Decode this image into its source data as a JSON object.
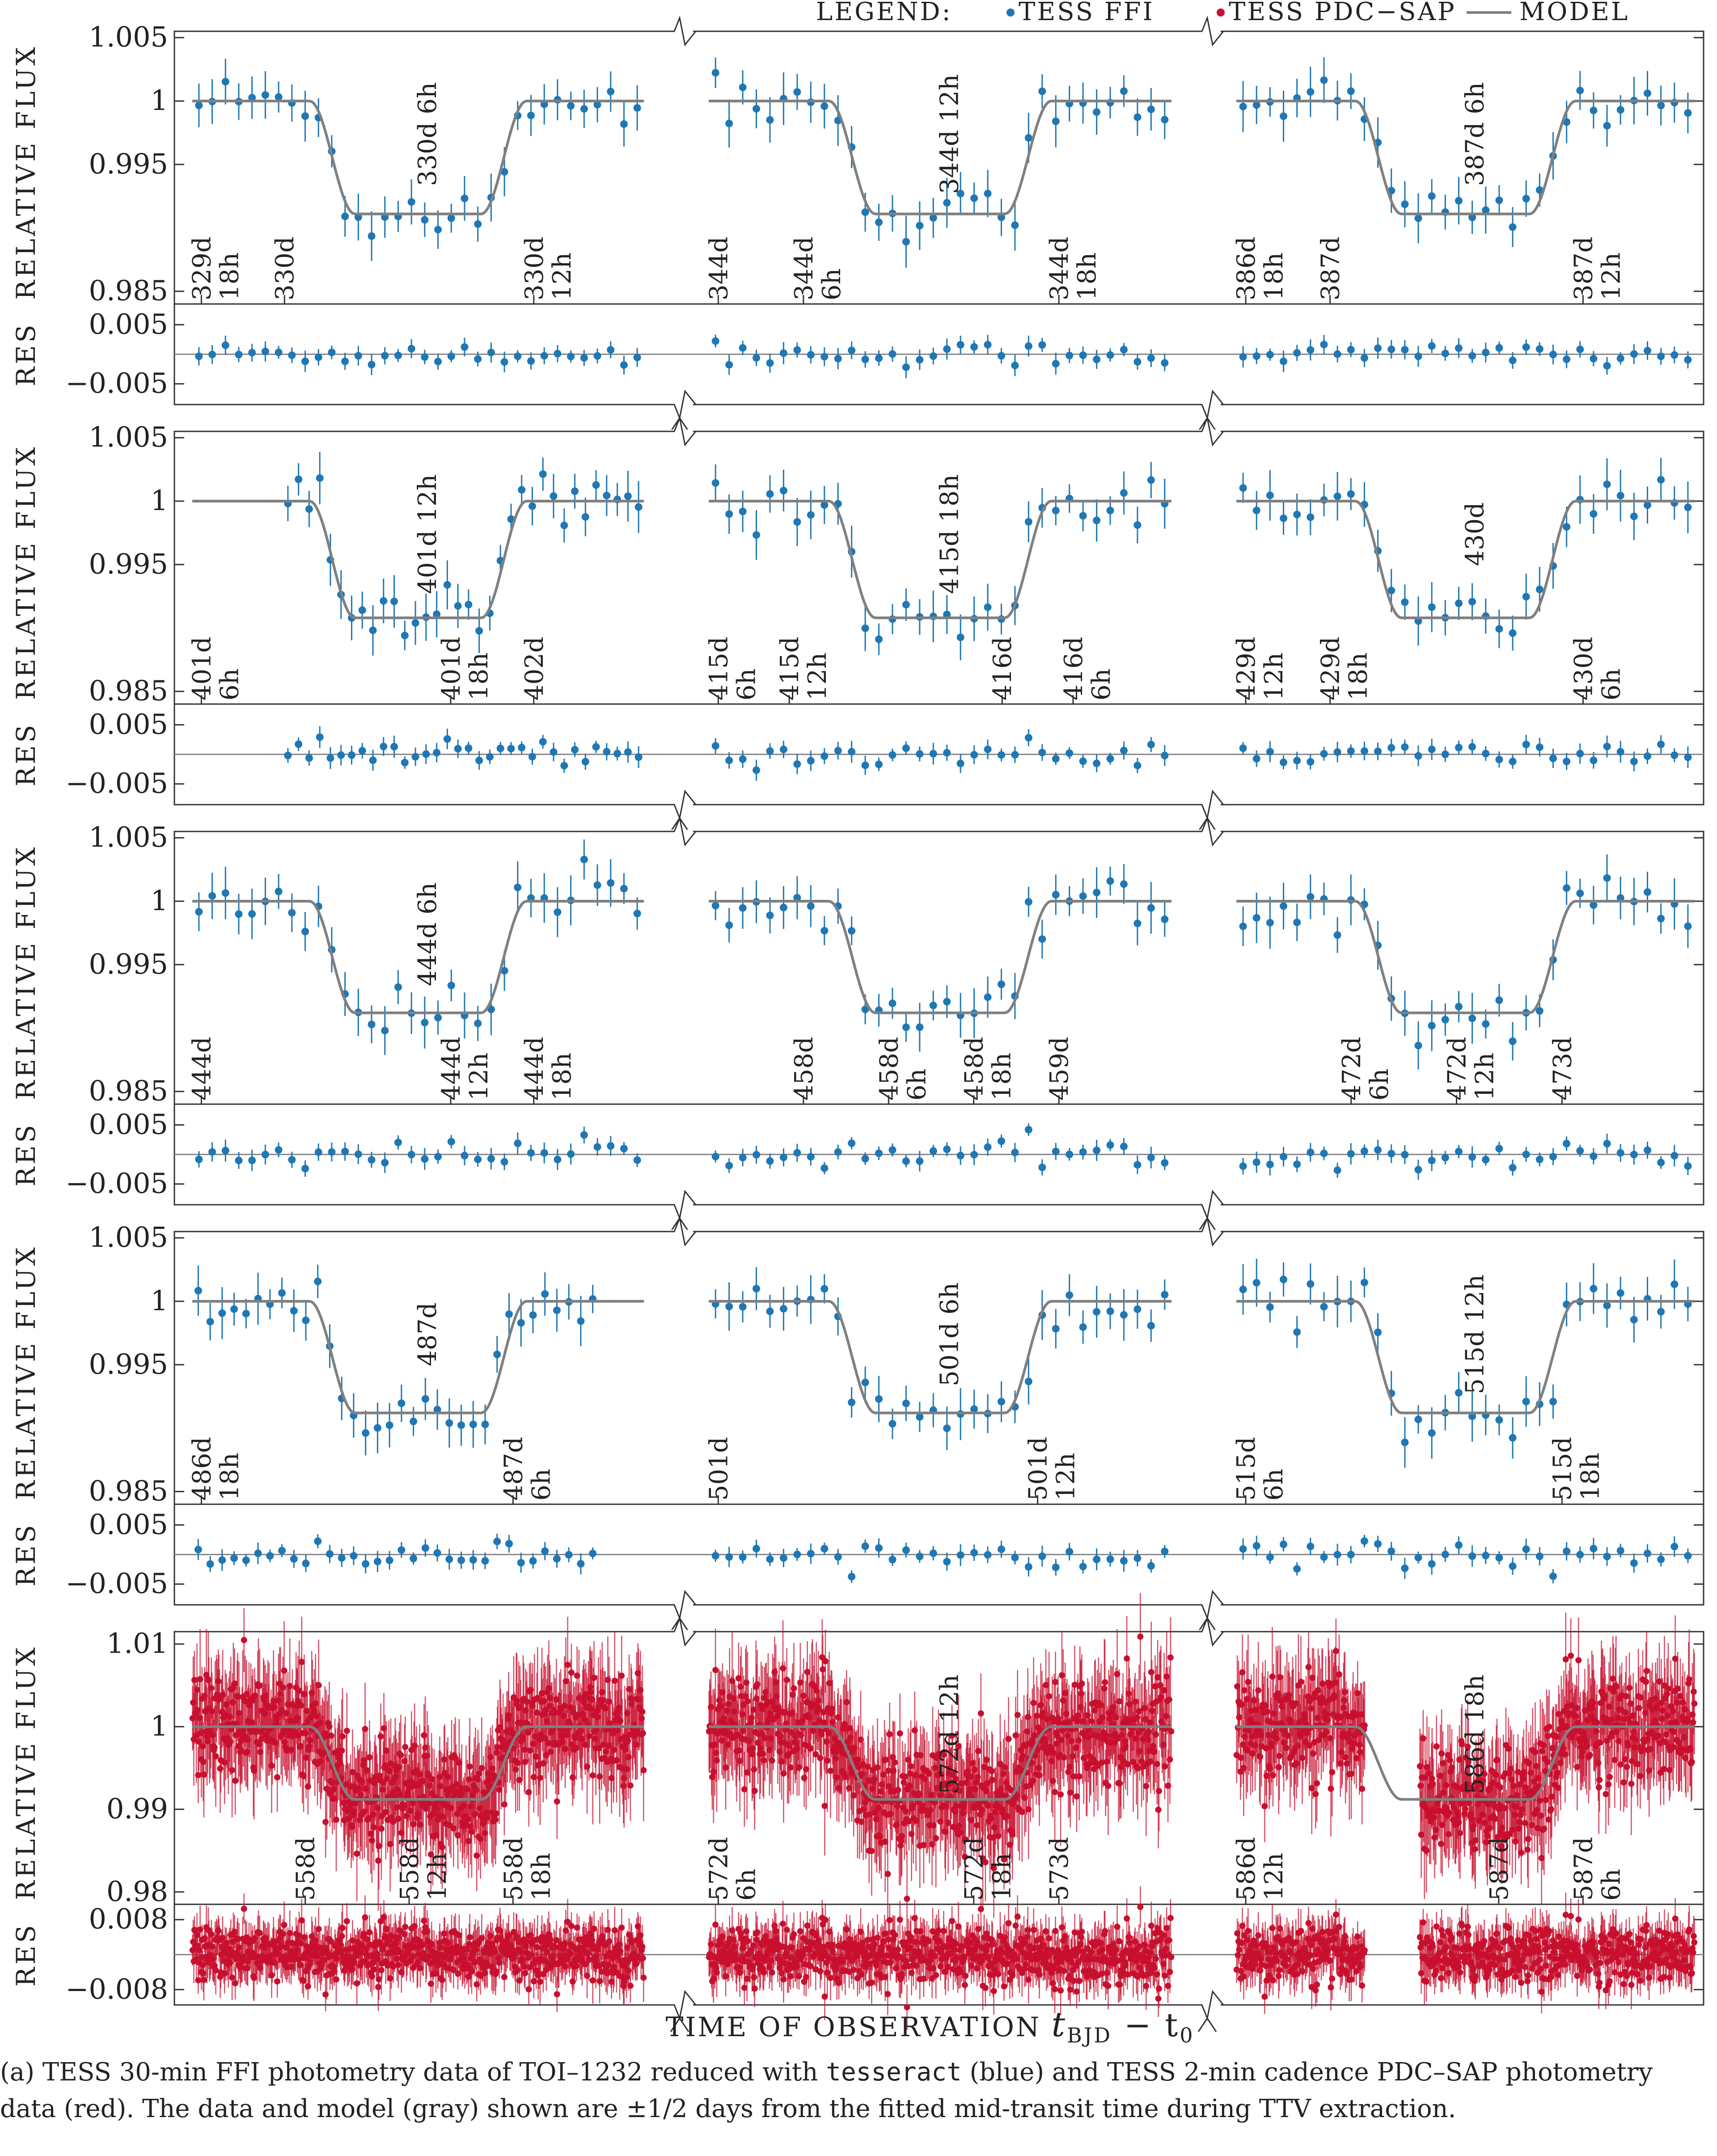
{
  "legend": {
    "title": "LEGEND:",
    "items": [
      {
        "label": "TESS FFI",
        "color": "#1f77b4",
        "kind": "point"
      },
      {
        "label": "TESS PDC−SAP",
        "color": "#c8102e",
        "kind": "point"
      },
      {
        "label": "MODEL",
        "color": "#808080",
        "kind": "line"
      }
    ]
  },
  "axis_labels": {
    "y_flux": "RELATIVE FLUX",
    "y_res": "RES",
    "x_prefix": "TIME OF OBSERVATION",
    "x_math": "t",
    "x_sub": "BJD",
    "x_suffix": "− t",
    "x_sub2": "0"
  },
  "caption": {
    "part1": "(a) TESS 30-min FFI photometry data of TOI–1232 reduced with ",
    "code": "tesseract",
    "part2": " (blue) and TESS 2-min cadence PDC–SAP photometry data (red). The data and model (gray) shown are ±1/2 days from the fitted mid-transit time during TTV extraction."
  },
  "chart_data": [
    {
      "type": "scatter",
      "source": "TESS FFI",
      "flux_ticks": [
        "1.005",
        "1",
        "0.995",
        "0.985"
      ],
      "res_ticks": [
        "0.005",
        "−0.005"
      ],
      "flux_ylim": [
        0.984,
        1.0055
      ],
      "res_ylim": [
        -0.0085,
        0.0085
      ],
      "depth": 0.0089,
      "transits": [
        {
          "center": "330d 6h",
          "labels": [
            "329d\n18h",
            "330d",
            "330d 6h",
            "330d\n12h"
          ],
          "visible_frac": [
            0.0,
            1.0
          ]
        },
        {
          "center": "344d 12h",
          "labels": [
            "344d",
            "344d\n6h",
            "344d 12h",
            "344d\n18h"
          ],
          "visible_frac": [
            0.0,
            1.0
          ]
        },
        {
          "center": "387d 6h",
          "labels": [
            "386d\n18h",
            "387d",
            "387d 6h",
            "387d\n12h"
          ],
          "visible_frac": [
            0.0,
            1.0
          ]
        }
      ]
    },
    {
      "type": "scatter",
      "source": "TESS FFI",
      "flux_ticks": [
        "1.005",
        "1",
        "0.995",
        "0.985"
      ],
      "res_ticks": [
        "0.005",
        "−0.005"
      ],
      "flux_ylim": [
        0.984,
        1.0055
      ],
      "res_ylim": [
        -0.0085,
        0.0085
      ],
      "depth": 0.0092,
      "transits": [
        {
          "center": "401d 12h",
          "labels": [
            "401d\n6h",
            "401d 12h",
            "401d\n18h",
            "402d"
          ],
          "visible_frac": [
            0.2,
            1.0
          ]
        },
        {
          "center": "415d 18h",
          "labels": [
            "415d\n6h",
            "415d\n12h",
            "415d 18h",
            "416d",
            "416d\n6h"
          ],
          "visible_frac": [
            0.0,
            1.0
          ]
        },
        {
          "center": "430d",
          "labels": [
            "429d\n12h",
            "429d\n18h",
            "430d",
            "430d\n6h"
          ],
          "visible_frac": [
            0.0,
            1.0
          ]
        }
      ]
    },
    {
      "type": "scatter",
      "source": "TESS FFI",
      "flux_ticks": [
        "1.005",
        "1",
        "0.995",
        "0.985"
      ],
      "res_ticks": [
        "0.005",
        "−0.005"
      ],
      "flux_ylim": [
        0.984,
        1.0055
      ],
      "res_ylim": [
        -0.0085,
        0.0085
      ],
      "depth": 0.0088,
      "transits": [
        {
          "center": "444d 6h",
          "labels": [
            "444d",
            "444d 6h",
            "444d\n12h",
            "444d\n18h"
          ],
          "visible_frac": [
            0.0,
            1.0
          ]
        },
        {
          "center": "458d 12h",
          "labels": [
            "458d",
            "458d\n6h",
            "458d\n18h",
            "459d"
          ],
          "visible_frac": [
            0.0,
            1.0
          ]
        },
        {
          "center": "472d 18h",
          "labels": [
            "472d\n6h",
            "472d\n12h",
            "473d"
          ],
          "visible_frac": [
            0.0,
            1.0
          ]
        }
      ]
    },
    {
      "type": "scatter",
      "source": "TESS FFI",
      "flux_ticks": [
        "1.005",
        "1",
        "0.995",
        "0.985"
      ],
      "res_ticks": [
        "0.005",
        "−0.005"
      ],
      "flux_ylim": [
        0.984,
        1.0055
      ],
      "res_ylim": [
        -0.0085,
        0.0085
      ],
      "depth": 0.0088,
      "transits": [
        {
          "center": "487d",
          "labels": [
            "486d\n18h",
            "487d",
            "487d\n6h"
          ],
          "visible_frac": [
            0.0,
            0.9
          ]
        },
        {
          "center": "501d 6h",
          "labels": [
            "501d",
            "501d 6h",
            "501d\n12h"
          ],
          "visible_frac": [
            0.0,
            1.0
          ]
        },
        {
          "center": "515d 12h",
          "labels": [
            "515d\n6h",
            "515d 12h",
            "515d\n18h"
          ],
          "visible_frac": [
            0.0,
            1.0
          ]
        }
      ]
    },
    {
      "type": "scatter",
      "source": "TESS PDC−SAP",
      "flux_ticks": [
        "1.01",
        "1",
        "0.99",
        "0.98"
      ],
      "res_ticks": [
        "0.008",
        "−0.008"
      ],
      "flux_ylim": [
        0.9785,
        1.0115
      ],
      "res_ylim": [
        -0.0115,
        0.0115
      ],
      "depth": 0.0088,
      "transits": [
        {
          "center": "558d 6h",
          "labels": [
            "558d",
            "558d\n12h",
            "558d\n18h"
          ],
          "visible_frac": [
            0.0,
            1.0
          ]
        },
        {
          "center": "572d 12h",
          "labels": [
            "572d\n6h",
            "572d 12h",
            "572d\n18h",
            "573d"
          ],
          "visible_frac": [
            0.0,
            1.0
          ]
        },
        {
          "center": "586d 18h",
          "labels": [
            "586d\n12h",
            "586d 18h",
            "587d",
            "587d\n6h"
          ],
          "visible_frac": [
            0.0,
            1.0
          ]
        }
      ]
    }
  ]
}
